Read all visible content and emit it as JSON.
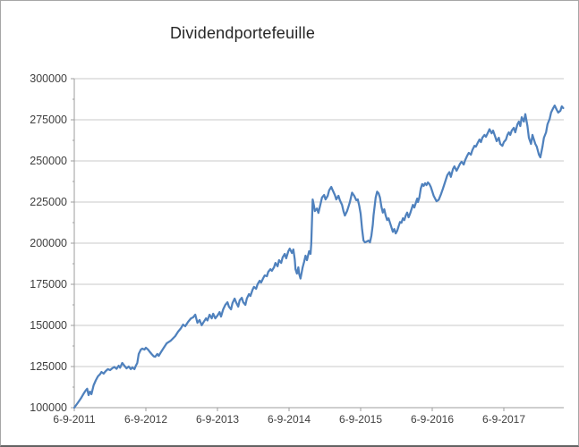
{
  "chart": {
    "title": "Dividendportefeuille"
  },
  "colors": {
    "series_line": "#4F81BD",
    "gridline": "#c9c9c9",
    "axis_line": "#9d9d9d",
    "tick_mark": "#9d9d9d",
    "label_text": "#3f3f3f",
    "title_text": "#262626",
    "plot_background": "#ffffff"
  },
  "chart_data": {
    "type": "line",
    "title": "Dividendportefeuille",
    "xlabel": "",
    "ylabel": "",
    "legend": "none",
    "grid": "horizontal-major",
    "ylim": [
      100000,
      300000
    ],
    "y_major_step": 25000,
    "y_minor_step": 12500,
    "y_tick_labels": [
      "100000",
      "125000",
      "150000",
      "175000",
      "200000",
      "225000",
      "250000",
      "275000",
      "300000"
    ],
    "x_tick_labels": [
      "6-9-2011",
      "6-9-2012",
      "6-9-2013",
      "6-9-2014",
      "6-9-2015",
      "6-9-2016",
      "6-9-2017"
    ],
    "x_unit": "years since 6-9-2011",
    "xlim": [
      0,
      6.84
    ],
    "x_tick_positions_years": [
      0,
      1,
      2,
      3,
      4,
      5,
      6
    ],
    "series": [
      {
        "name": "Dividendportefeuille",
        "points": [
          [
            0.0,
            100000
          ],
          [
            0.05,
            103000
          ],
          [
            0.09,
            105500
          ],
          [
            0.13,
            108500
          ],
          [
            0.16,
            110500
          ],
          [
            0.18,
            111500
          ],
          [
            0.2,
            107600
          ],
          [
            0.22,
            109800
          ],
          [
            0.24,
            108200
          ],
          [
            0.27,
            113600
          ],
          [
            0.3,
            116600
          ],
          [
            0.33,
            119000
          ],
          [
            0.36,
            120300
          ],
          [
            0.38,
            121700
          ],
          [
            0.41,
            120700
          ],
          [
            0.44,
            122300
          ],
          [
            0.47,
            123400
          ],
          [
            0.5,
            122800
          ],
          [
            0.53,
            123900
          ],
          [
            0.56,
            124800
          ],
          [
            0.59,
            123600
          ],
          [
            0.62,
            125500
          ],
          [
            0.64,
            124300
          ],
          [
            0.67,
            127200
          ],
          [
            0.7,
            125500
          ],
          [
            0.73,
            123900
          ],
          [
            0.76,
            125000
          ],
          [
            0.79,
            123400
          ],
          [
            0.81,
            124500
          ],
          [
            0.84,
            123400
          ],
          [
            0.86,
            125500
          ],
          [
            0.88,
            127200
          ],
          [
            0.9,
            132600
          ],
          [
            0.93,
            135300
          ],
          [
            0.95,
            135900
          ],
          [
            0.98,
            135300
          ],
          [
            1.0,
            136400
          ],
          [
            1.03,
            135300
          ],
          [
            1.05,
            134200
          ],
          [
            1.08,
            132600
          ],
          [
            1.11,
            131200
          ],
          [
            1.13,
            130900
          ],
          [
            1.16,
            132600
          ],
          [
            1.18,
            131500
          ],
          [
            1.21,
            133700
          ],
          [
            1.25,
            136400
          ],
          [
            1.29,
            139100
          ],
          [
            1.35,
            140800
          ],
          [
            1.41,
            143500
          ],
          [
            1.45,
            146200
          ],
          [
            1.49,
            148300
          ],
          [
            1.52,
            150500
          ],
          [
            1.55,
            149500
          ],
          [
            1.59,
            152200
          ],
          [
            1.63,
            154300
          ],
          [
            1.66,
            154900
          ],
          [
            1.69,
            156500
          ],
          [
            1.72,
            151600
          ],
          [
            1.75,
            153300
          ],
          [
            1.78,
            150100
          ],
          [
            1.81,
            152300
          ],
          [
            1.84,
            154300
          ],
          [
            1.86,
            153000
          ],
          [
            1.89,
            156500
          ],
          [
            1.92,
            154300
          ],
          [
            1.94,
            157100
          ],
          [
            1.97,
            154300
          ],
          [
            2.0,
            156000
          ],
          [
            2.03,
            158100
          ],
          [
            2.05,
            155400
          ],
          [
            2.08,
            159800
          ],
          [
            2.11,
            162500
          ],
          [
            2.14,
            164100
          ],
          [
            2.16,
            161400
          ],
          [
            2.19,
            159800
          ],
          [
            2.21,
            163600
          ],
          [
            2.24,
            166300
          ],
          [
            2.26,
            164100
          ],
          [
            2.29,
            161400
          ],
          [
            2.31,
            165200
          ],
          [
            2.34,
            166800
          ],
          [
            2.36,
            164100
          ],
          [
            2.39,
            162500
          ],
          [
            2.41,
            166300
          ],
          [
            2.44,
            169000
          ],
          [
            2.46,
            167900
          ],
          [
            2.49,
            171700
          ],
          [
            2.51,
            173400
          ],
          [
            2.54,
            172300
          ],
          [
            2.56,
            175000
          ],
          [
            2.59,
            177200
          ],
          [
            2.61,
            176100
          ],
          [
            2.64,
            178800
          ],
          [
            2.66,
            180400
          ],
          [
            2.69,
            179900
          ],
          [
            2.71,
            182600
          ],
          [
            2.74,
            184200
          ],
          [
            2.76,
            183200
          ],
          [
            2.79,
            185300
          ],
          [
            2.81,
            188000
          ],
          [
            2.84,
            185900
          ],
          [
            2.86,
            189700
          ],
          [
            2.89,
            188000
          ],
          [
            2.91,
            191300
          ],
          [
            2.94,
            193500
          ],
          [
            2.96,
            190800
          ],
          [
            2.99,
            195100
          ],
          [
            3.01,
            196700
          ],
          [
            3.04,
            194000
          ],
          [
            3.06,
            196200
          ],
          [
            3.08,
            190000
          ],
          [
            3.09,
            184200
          ],
          [
            3.11,
            181500
          ],
          [
            3.13,
            185300
          ],
          [
            3.14,
            181500
          ],
          [
            3.16,
            178500
          ],
          [
            3.19,
            185300
          ],
          [
            3.21,
            188600
          ],
          [
            3.23,
            192400
          ],
          [
            3.25,
            189700
          ],
          [
            3.28,
            195100
          ],
          [
            3.3,
            193500
          ],
          [
            3.31,
            199500
          ],
          [
            3.33,
            226600
          ],
          [
            3.35,
            222300
          ],
          [
            3.36,
            219500
          ],
          [
            3.39,
            221100
          ],
          [
            3.41,
            218400
          ],
          [
            3.44,
            223900
          ],
          [
            3.46,
            227700
          ],
          [
            3.49,
            229300
          ],
          [
            3.51,
            226600
          ],
          [
            3.54,
            228800
          ],
          [
            3.56,
            232100
          ],
          [
            3.59,
            234200
          ],
          [
            3.61,
            232100
          ],
          [
            3.64,
            229300
          ],
          [
            3.66,
            226600
          ],
          [
            3.69,
            228800
          ],
          [
            3.71,
            226100
          ],
          [
            3.74,
            223300
          ],
          [
            3.76,
            219500
          ],
          [
            3.78,
            216800
          ],
          [
            3.81,
            219500
          ],
          [
            3.83,
            222200
          ],
          [
            3.85,
            225000
          ],
          [
            3.88,
            230700
          ],
          [
            3.91,
            228800
          ],
          [
            3.94,
            226100
          ],
          [
            3.96,
            226600
          ],
          [
            3.98,
            222800
          ],
          [
            4.0,
            217900
          ],
          [
            4.02,
            208600
          ],
          [
            4.04,
            201600
          ],
          [
            4.06,
            200500
          ],
          [
            4.09,
            201100
          ],
          [
            4.11,
            201600
          ],
          [
            4.13,
            200500
          ],
          [
            4.15,
            204500
          ],
          [
            4.17,
            211300
          ],
          [
            4.18,
            216800
          ],
          [
            4.21,
            227700
          ],
          [
            4.23,
            231300
          ],
          [
            4.25,
            230400
          ],
          [
            4.27,
            227700
          ],
          [
            4.29,
            222200
          ],
          [
            4.31,
            218600
          ],
          [
            4.33,
            220600
          ],
          [
            4.35,
            216800
          ],
          [
            4.37,
            214000
          ],
          [
            4.39,
            215100
          ],
          [
            4.41,
            212400
          ],
          [
            4.43,
            209700
          ],
          [
            4.45,
            206900
          ],
          [
            4.47,
            208600
          ],
          [
            4.49,
            205900
          ],
          [
            4.51,
            207500
          ],
          [
            4.53,
            210200
          ],
          [
            4.55,
            212900
          ],
          [
            4.57,
            212400
          ],
          [
            4.59,
            215100
          ],
          [
            4.61,
            214000
          ],
          [
            4.63,
            216800
          ],
          [
            4.65,
            218600
          ],
          [
            4.67,
            215700
          ],
          [
            4.69,
            217900
          ],
          [
            4.71,
            220600
          ],
          [
            4.73,
            223300
          ],
          [
            4.75,
            221700
          ],
          [
            4.77,
            224400
          ],
          [
            4.79,
            227100
          ],
          [
            4.8,
            225000
          ],
          [
            4.82,
            227700
          ],
          [
            4.84,
            233200
          ],
          [
            4.86,
            235900
          ],
          [
            4.88,
            234800
          ],
          [
            4.9,
            236400
          ],
          [
            4.92,
            235300
          ],
          [
            4.94,
            236900
          ],
          [
            4.96,
            235900
          ],
          [
            4.98,
            234200
          ],
          [
            5.0,
            231500
          ],
          [
            5.02,
            228800
          ],
          [
            5.04,
            227100
          ],
          [
            5.06,
            225500
          ],
          [
            5.09,
            226300
          ],
          [
            5.12,
            229500
          ],
          [
            5.15,
            233200
          ],
          [
            5.19,
            238600
          ],
          [
            5.21,
            241300
          ],
          [
            5.24,
            243200
          ],
          [
            5.26,
            240300
          ],
          [
            5.29,
            245100
          ],
          [
            5.31,
            246700
          ],
          [
            5.34,
            244000
          ],
          [
            5.36,
            245700
          ],
          [
            5.39,
            248400
          ],
          [
            5.41,
            249500
          ],
          [
            5.44,
            247800
          ],
          [
            5.46,
            250500
          ],
          [
            5.49,
            253300
          ],
          [
            5.51,
            254900
          ],
          [
            5.54,
            253800
          ],
          [
            5.56,
            256500
          ],
          [
            5.59,
            259200
          ],
          [
            5.61,
            258700
          ],
          [
            5.64,
            261400
          ],
          [
            5.66,
            263000
          ],
          [
            5.68,
            261400
          ],
          [
            5.7,
            264100
          ],
          [
            5.73,
            265800
          ],
          [
            5.75,
            264700
          ],
          [
            5.78,
            267400
          ],
          [
            5.8,
            269300
          ],
          [
            5.83,
            266800
          ],
          [
            5.85,
            268400
          ],
          [
            5.88,
            264700
          ],
          [
            5.9,
            262000
          ],
          [
            5.93,
            264100
          ],
          [
            5.95,
            260300
          ],
          [
            5.98,
            259200
          ],
          [
            6.0,
            261400
          ],
          [
            6.03,
            263000
          ],
          [
            6.05,
            265800
          ],
          [
            6.07,
            267400
          ],
          [
            6.09,
            265800
          ],
          [
            6.11,
            268400
          ],
          [
            6.14,
            270100
          ],
          [
            6.16,
            267400
          ],
          [
            6.19,
            272300
          ],
          [
            6.21,
            273900
          ],
          [
            6.23,
            271200
          ],
          [
            6.25,
            276600
          ],
          [
            6.28,
            273900
          ],
          [
            6.3,
            278400
          ],
          [
            6.33,
            271200
          ],
          [
            6.35,
            264100
          ],
          [
            6.38,
            260300
          ],
          [
            6.4,
            265800
          ],
          [
            6.42,
            263000
          ],
          [
            6.44,
            260300
          ],
          [
            6.46,
            258700
          ],
          [
            6.49,
            253800
          ],
          [
            6.51,
            252200
          ],
          [
            6.54,
            258700
          ],
          [
            6.56,
            264100
          ],
          [
            6.59,
            267400
          ],
          [
            6.61,
            272300
          ],
          [
            6.64,
            275500
          ],
          [
            6.66,
            279400
          ],
          [
            6.69,
            282100
          ],
          [
            6.71,
            283700
          ],
          [
            6.74,
            281000
          ],
          [
            6.76,
            279400
          ],
          [
            6.79,
            280500
          ],
          [
            6.81,
            283200
          ],
          [
            6.83,
            282100
          ]
        ]
      }
    ]
  }
}
